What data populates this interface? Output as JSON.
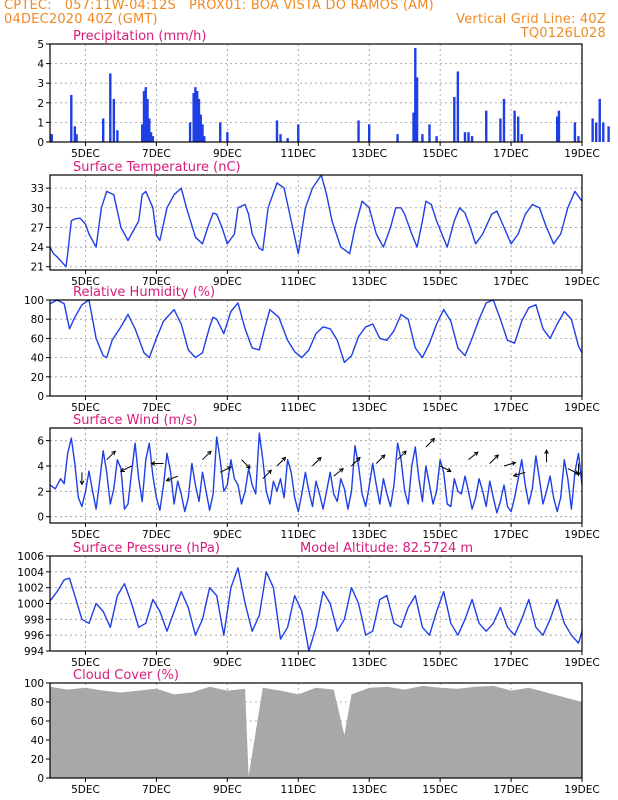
{
  "header": {
    "line1_left": "CPTEC:   057:11W-04:12S   PROX01: BOA VISTA DO RAMOS (AM)",
    "line2_left": "04DEC2020 40Z (GMT)",
    "line2_right": "Vertical Grid Line: 40Z",
    "line3_right": "TQ0126L028"
  },
  "colors": {
    "header": "#f08a24",
    "title": "#d81b7a",
    "series": "#1f3fe6",
    "cloud": "#a8a8a8",
    "grid": "#9a9a9a"
  },
  "x_ticks": [
    "5DEC",
    "7DEC",
    "9DEC",
    "11DEC",
    "13DEC",
    "15DEC",
    "17DEC",
    "19DEC"
  ],
  "chart_data": [
    {
      "type": "bar",
      "title": "Precipitation (mm/h)",
      "x_range": [
        "04DEC2020 00Z",
        "19DEC2020 00Z"
      ],
      "ylim": [
        0,
        5
      ],
      "yticks": [
        "0",
        "1",
        "2",
        "3",
        "4",
        "5"
      ],
      "x_days": [
        0.05,
        0.6,
        0.7,
        0.75,
        1.5,
        1.7,
        1.8,
        1.9,
        2.6,
        2.65,
        2.7,
        2.75,
        2.8,
        2.85,
        2.9,
        3.95,
        4.05,
        4.1,
        4.15,
        4.2,
        4.25,
        4.3,
        4.35,
        4.8,
        5.0,
        6.4,
        6.5,
        6.7,
        7.0,
        8.7,
        9.0,
        9.8,
        10.25,
        10.3,
        10.35,
        10.5,
        10.7,
        10.9,
        11.4,
        11.5,
        11.7,
        11.8,
        11.9,
        12.3,
        12.7,
        12.8,
        13.1,
        13.2,
        13.3,
        14.3,
        14.35,
        14.8,
        14.9,
        15.3,
        15.4,
        15.5,
        15.6,
        15.75,
        16.35,
        16.4,
        16.8
      ],
      "values": [
        0.4,
        2.4,
        0.8,
        0.4,
        1.2,
        3.5,
        2.2,
        0.6,
        0.9,
        2.6,
        2.8,
        2.2,
        1.2,
        0.5,
        0.3,
        1.0,
        2.5,
        2.8,
        2.6,
        2.2,
        1.4,
        0.9,
        0.3,
        1.0,
        0.5,
        1.1,
        0.4,
        0.2,
        0.9,
        1.1,
        0.9,
        0.4,
        1.5,
        4.8,
        3.3,
        0.4,
        0.9,
        0.3,
        2.3,
        3.6,
        0.5,
        0.5,
        0.3,
        1.6,
        1.2,
        2.2,
        1.6,
        1.3,
        0.4,
        1.3,
        1.6,
        1.0,
        0.3,
        1.2,
        1.0,
        2.2,
        1.0,
        0.8,
        1.1,
        1.5,
        0.5
      ]
    },
    {
      "type": "line",
      "title": "Surface Temperature (nC)",
      "ylim": [
        20.5,
        35
      ],
      "yticks": [
        "21",
        "24",
        "27",
        "30",
        "33"
      ],
      "x_days": [
        0.0,
        0.1,
        0.2,
        0.45,
        0.5,
        0.6,
        0.7,
        0.85,
        1.0,
        1.1,
        1.3,
        1.45,
        1.6,
        1.8,
        2.0,
        2.2,
        2.5,
        2.6,
        2.7,
        2.9,
        3.0,
        3.1,
        3.3,
        3.5,
        3.7,
        3.85,
        4.1,
        4.3,
        4.45,
        4.6,
        4.7,
        4.85,
        5.0,
        5.2,
        5.3,
        5.5,
        5.6,
        5.7,
        5.9,
        6.0,
        6.15,
        6.4,
        6.6,
        6.8,
        7.0,
        7.2,
        7.4,
        7.65,
        7.8,
        7.95,
        8.2,
        8.45,
        8.6,
        8.8,
        9.0,
        9.2,
        9.4,
        9.6,
        9.75,
        9.9,
        10.0,
        10.2,
        10.35,
        10.5,
        10.6,
        10.75,
        10.9,
        11.05,
        11.2,
        11.4,
        11.55,
        11.7,
        11.85,
        12.0,
        12.2,
        12.45,
        12.6,
        12.8,
        13.0,
        13.2,
        13.4,
        13.6,
        13.8,
        14.0,
        14.2,
        14.4,
        14.6,
        14.8,
        15.0
      ],
      "values": [
        24.0,
        23.0,
        22.5,
        21.0,
        23.0,
        28.0,
        28.3,
        28.4,
        27.5,
        26.0,
        24.0,
        30.0,
        32.5,
        32.0,
        27.0,
        25.0,
        28.0,
        32.0,
        32.5,
        30.0,
        25.8,
        25.0,
        30.0,
        32.0,
        33.0,
        30.0,
        25.5,
        24.5,
        27.0,
        29.2,
        29.0,
        27.0,
        24.5,
        26.0,
        30.0,
        30.5,
        29.0,
        26.0,
        23.8,
        23.5,
        30.0,
        33.8,
        33.0,
        28.0,
        23.0,
        30.0,
        33.0,
        35.0,
        32.0,
        28.0,
        24.0,
        23.0,
        27.0,
        31.0,
        30.0,
        26.0,
        24.0,
        27.0,
        30.0,
        30.0,
        29.0,
        26.0,
        24.0,
        28.0,
        31.0,
        30.5,
        28.0,
        26.0,
        24.0,
        28.0,
        30.0,
        29.2,
        27.0,
        24.5,
        26.0,
        29.0,
        29.5,
        27.0,
        24.5,
        26.0,
        29.0,
        30.5,
        30.0,
        27.0,
        24.5,
        26.0,
        30.0,
        32.5,
        31.0
      ]
    },
    {
      "type": "line",
      "title": "Relative Humidity (%)",
      "ylim": [
        0,
        100
      ],
      "yticks": [
        "0",
        "20",
        "40",
        "60",
        "80",
        "100"
      ],
      "x_days": [
        0.0,
        0.2,
        0.4,
        0.55,
        0.7,
        0.9,
        1.1,
        1.3,
        1.5,
        1.6,
        1.75,
        2.0,
        2.2,
        2.4,
        2.65,
        2.8,
        3.0,
        3.2,
        3.5,
        3.7,
        3.9,
        4.1,
        4.3,
        4.5,
        4.6,
        4.7,
        4.9,
        5.1,
        5.3,
        5.5,
        5.7,
        5.9,
        6.05,
        6.2,
        6.45,
        6.7,
        6.9,
        7.1,
        7.3,
        7.5,
        7.7,
        7.9,
        8.1,
        8.3,
        8.5,
        8.7,
        8.9,
        9.1,
        9.3,
        9.5,
        9.7,
        9.9,
        10.1,
        10.3,
        10.5,
        10.7,
        10.9,
        11.1,
        11.3,
        11.5,
        11.7,
        11.9,
        12.1,
        12.3,
        12.5,
        12.7,
        12.9,
        13.1,
        13.3,
        13.5,
        13.7,
        13.9,
        14.1,
        14.3,
        14.5,
        14.7,
        14.9,
        15.0
      ],
      "values": [
        96,
        100,
        96,
        70,
        82,
        95,
        100,
        60,
        42,
        40,
        58,
        72,
        85,
        70,
        45,
        40,
        60,
        78,
        90,
        75,
        48,
        40,
        45,
        72,
        82,
        80,
        65,
        88,
        97,
        70,
        50,
        48,
        70,
        90,
        82,
        58,
        46,
        40,
        48,
        65,
        72,
        70,
        58,
        35,
        42,
        62,
        72,
        75,
        60,
        58,
        68,
        85,
        80,
        50,
        40,
        55,
        75,
        90,
        78,
        50,
        42,
        60,
        80,
        97,
        100,
        80,
        58,
        55,
        78,
        92,
        95,
        70,
        60,
        75,
        88,
        80,
        52,
        45
      ]
    },
    {
      "type": "line",
      "title": "Surface Wind (m/s)",
      "ylim": [
        -0.5,
        7.0
      ],
      "yticks": [
        "0",
        "2",
        "4",
        "6"
      ],
      "x_days": [
        0.0,
        0.15,
        0.3,
        0.4,
        0.5,
        0.6,
        0.7,
        0.8,
        0.9,
        1.0,
        1.1,
        1.2,
        1.3,
        1.4,
        1.5,
        1.6,
        1.7,
        1.8,
        1.9,
        2.0,
        2.1,
        2.2,
        2.3,
        2.4,
        2.5,
        2.6,
        2.7,
        2.8,
        2.9,
        3.0,
        3.1,
        3.2,
        3.3,
        3.4,
        3.5,
        3.6,
        3.7,
        3.8,
        3.9,
        4.0,
        4.1,
        4.2,
        4.3,
        4.4,
        4.5,
        4.6,
        4.7,
        4.8,
        4.9,
        5.0,
        5.1,
        5.2,
        5.3,
        5.4,
        5.5,
        5.6,
        5.7,
        5.8,
        5.9,
        6.0,
        6.1,
        6.2,
        6.3,
        6.4,
        6.5,
        6.6,
        6.7,
        6.8,
        6.9,
        7.0,
        7.1,
        7.2,
        7.3,
        7.4,
        7.5,
        7.6,
        7.7,
        7.8,
        7.9,
        8.0,
        8.1,
        8.2,
        8.3,
        8.4,
        8.5,
        8.6,
        8.7,
        8.8,
        8.9,
        9.0,
        9.1,
        9.2,
        9.3,
        9.4,
        9.5,
        9.6,
        9.7,
        9.8,
        9.9,
        10.0,
        10.1,
        10.2,
        10.3,
        10.4,
        10.5,
        10.6,
        10.7,
        10.8,
        10.9,
        11.0,
        11.1,
        11.2,
        11.3,
        11.4,
        11.5,
        11.6,
        11.7,
        11.8,
        11.9,
        12.0,
        12.1,
        12.2,
        12.3,
        12.4,
        12.5,
        12.6,
        12.7,
        12.8,
        12.9,
        13.0,
        13.1,
        13.2,
        13.3,
        13.4,
        13.5,
        13.6,
        13.7,
        13.8,
        13.9,
        14.0,
        14.1,
        14.2,
        14.3,
        14.4,
        14.5,
        14.6,
        14.7,
        14.8,
        14.9,
        15.0
      ],
      "values": [
        2.5,
        2.2,
        3.0,
        2.6,
        5.0,
        6.2,
        4.2,
        1.5,
        0.8,
        2.0,
        3.6,
        2.0,
        0.6,
        2.8,
        5.2,
        3.5,
        1.0,
        2.2,
        4.5,
        3.8,
        0.6,
        1.0,
        3.5,
        5.8,
        3.0,
        1.2,
        4.5,
        5.8,
        3.2,
        1.5,
        0.5,
        2.5,
        5.0,
        3.5,
        1.0,
        2.8,
        1.8,
        0.4,
        1.5,
        4.2,
        2.5,
        1.2,
        3.5,
        2.0,
        0.5,
        1.8,
        6.3,
        4.5,
        2.0,
        2.5,
        4.5,
        3.0,
        2.5,
        1.0,
        2.0,
        3.8,
        2.5,
        1.8,
        6.6,
        4.5,
        2.0,
        1.0,
        2.8,
        2.0,
        3.0,
        1.5,
        4.5,
        3.5,
        1.5,
        0.4,
        1.8,
        3.5,
        2.0,
        0.8,
        2.8,
        1.8,
        0.6,
        2.0,
        3.5,
        1.8,
        1.2,
        3.0,
        2.2,
        0.6,
        2.0,
        5.6,
        4.0,
        1.8,
        0.8,
        2.4,
        4.2,
        2.5,
        1.0,
        3.0,
        1.8,
        0.8,
        2.5,
        5.8,
        4.5,
        2.0,
        1.0,
        4.0,
        5.5,
        3.0,
        1.2,
        4.0,
        2.5,
        1.0,
        2.0,
        4.5,
        3.5,
        1.0,
        0.8,
        3.0,
        2.0,
        1.8,
        3.2,
        2.0,
        0.6,
        1.5,
        3.0,
        2.0,
        0.8,
        2.8,
        1.5,
        0.3,
        1.2,
        2.5,
        0.8,
        0.4,
        1.5,
        3.0,
        4.5,
        2.5,
        1.0,
        2.2,
        4.8,
        3.0,
        1.0,
        2.0,
        3.2,
        1.5,
        0.4,
        1.5,
        4.5,
        3.0,
        0.6,
        3.5,
        5.0,
        2.5
      ],
      "arrows_text": "wind direction arrows"
    },
    {
      "type": "line",
      "title": "Surface Pressure (hPa)",
      "annotation": "Model Altitude: 82.5724 m",
      "ylim": [
        994,
        1006
      ],
      "yticks": [
        "994",
        "996",
        "998",
        "1000",
        "1002",
        "1004",
        "1006"
      ],
      "x_days": [
        0.0,
        0.2,
        0.4,
        0.55,
        0.7,
        0.9,
        1.1,
        1.3,
        1.5,
        1.7,
        1.9,
        2.1,
        2.3,
        2.5,
        2.7,
        2.9,
        3.1,
        3.3,
        3.5,
        3.7,
        3.9,
        4.1,
        4.3,
        4.5,
        4.7,
        4.9,
        5.1,
        5.3,
        5.5,
        5.7,
        5.9,
        6.1,
        6.3,
        6.5,
        6.7,
        6.9,
        7.1,
        7.3,
        7.5,
        7.7,
        7.9,
        8.1,
        8.3,
        8.5,
        8.7,
        8.9,
        9.1,
        9.3,
        9.5,
        9.7,
        9.9,
        10.1,
        10.3,
        10.5,
        10.7,
        10.9,
        11.1,
        11.3,
        11.5,
        11.7,
        11.9,
        12.1,
        12.3,
        12.5,
        12.7,
        12.9,
        13.1,
        13.3,
        13.5,
        13.7,
        13.9,
        14.1,
        14.3,
        14.5,
        14.7,
        14.9,
        15.0
      ],
      "values": [
        1000.3,
        1001.5,
        1003.0,
        1003.2,
        1001.0,
        998.0,
        997.5,
        1000.0,
        999.0,
        997.0,
        1001.0,
        1002.5,
        1000.0,
        997.0,
        997.5,
        1000.5,
        999.0,
        996.5,
        999.0,
        1001.5,
        999.5,
        996.0,
        998.0,
        1002.0,
        1001.0,
        996.0,
        1002.0,
        1004.5,
        1000.0,
        996.5,
        998.5,
        1004.0,
        1002.0,
        995.5,
        997.0,
        1001.0,
        999.0,
        994.0,
        997.0,
        1001.5,
        1000.0,
        996.5,
        998.0,
        1002.0,
        1000.0,
        996.0,
        996.5,
        1000.5,
        1001.0,
        997.5,
        997.0,
        999.5,
        1001.0,
        997.0,
        996.0,
        999.0,
        1001.5,
        997.5,
        996.0,
        998.0,
        1000.5,
        997.5,
        996.5,
        997.5,
        999.5,
        997.0,
        996.0,
        998.0,
        1000.5,
        997.0,
        996.0,
        998.0,
        1000.5,
        997.5,
        996.0,
        995.0,
        996.5
      ]
    },
    {
      "type": "area",
      "title": "Cloud Cover (%)",
      "ylim": [
        0,
        100
      ],
      "yticks": [
        "0",
        "20",
        "40",
        "60",
        "80",
        "100"
      ],
      "x_days": [
        0.0,
        0.5,
        1.0,
        1.5,
        2.0,
        2.5,
        3.0,
        3.5,
        4.0,
        4.5,
        5.0,
        5.5,
        5.6,
        6.0,
        6.5,
        7.0,
        7.5,
        8.0,
        8.3,
        8.5,
        9.0,
        9.5,
        10.0,
        10.5,
        11.0,
        11.5,
        12.0,
        12.5,
        13.0,
        13.5,
        14.0,
        14.5,
        15.0
      ],
      "values": [
        96,
        93,
        95,
        92,
        90,
        92,
        94,
        88,
        90,
        96,
        92,
        94,
        2,
        95,
        92,
        88,
        95,
        93,
        45,
        88,
        95,
        96,
        93,
        97,
        95,
        94,
        96,
        97,
        92,
        95,
        90,
        85,
        80
      ]
    }
  ]
}
